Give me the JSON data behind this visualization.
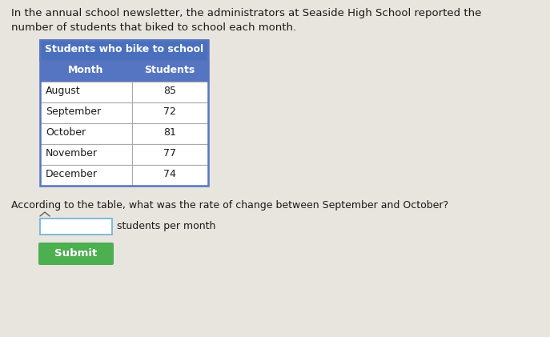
{
  "intro_text_line1": "In the annual school newsletter, the administrators at Seaside High School reported the",
  "intro_text_line2": "number of students that biked to school each month.",
  "table_title": "Students who bike to school",
  "col_headers": [
    "Month",
    "Students"
  ],
  "rows": [
    [
      "August",
      "85"
    ],
    [
      "September",
      "72"
    ],
    [
      "October",
      "81"
    ],
    [
      "November",
      "77"
    ],
    [
      "December",
      "74"
    ]
  ],
  "question_text": "According to the table, what was the rate of change between September and October?",
  "input_label": "students per month",
  "submit_text": "Submit",
  "title_bg_color": "#4a6fbd",
  "subheader_bg_color": "#5575c2",
  "header_text_color": "#ffffff",
  "row_bg_white": "#ffffff",
  "table_border_color": "#5575c2",
  "cell_line_color": "#aaaaaa",
  "bg_color": "#e8e4de",
  "submit_bg": "#4caf50",
  "submit_text_color": "#ffffff",
  "body_text_color": "#1a1a1a",
  "input_box_border": "#6ab0d8",
  "input_box_fill": "#ffffff",
  "font_size_intro": 9.5,
  "font_size_table_title": 9.0,
  "font_size_header": 9.0,
  "font_size_body": 9.0,
  "font_size_question": 9.0,
  "font_size_submit": 9.5
}
